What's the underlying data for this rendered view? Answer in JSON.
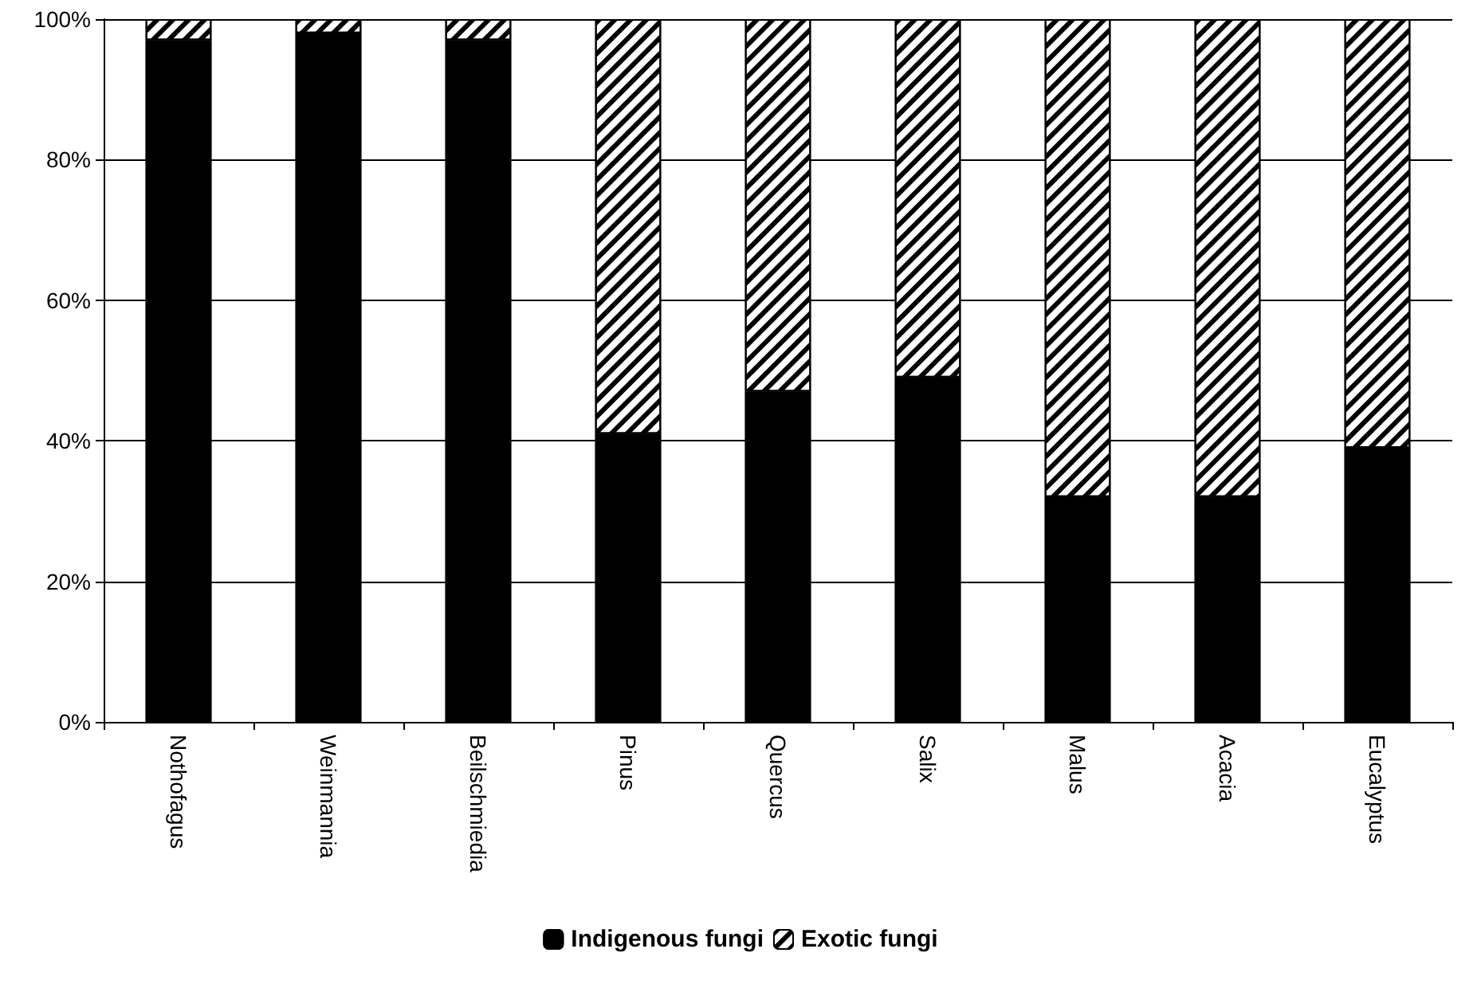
{
  "chart_data": {
    "type": "bar",
    "stacked": true,
    "categories": [
      "Nothofagus",
      "Weinmannia",
      "Beilschmiedia",
      "Pinus",
      "Quercus",
      "Salix",
      "Malus",
      "Acacia",
      "Eucalyptus"
    ],
    "series": [
      {
        "name": "Indigenous fungi",
        "color": "#000000",
        "values": [
          97,
          98,
          97,
          41,
          47,
          49,
          32,
          32,
          39
        ]
      },
      {
        "name": "Exotic fungi",
        "color": "#ffffff",
        "values": [
          3,
          2,
          3,
          59,
          53,
          51,
          68,
          68,
          61
        ]
      }
    ],
    "ylim": [
      0,
      100
    ],
    "yticks": [
      {
        "value": 0,
        "label": "0%"
      },
      {
        "value": 20,
        "label": "20%"
      },
      {
        "value": 40,
        "label": "40%"
      },
      {
        "value": 60,
        "label": "60%"
      },
      {
        "value": 80,
        "label": "80%"
      },
      {
        "value": 100,
        "label": "100%"
      }
    ],
    "grid": "y",
    "legend": "bottom"
  }
}
